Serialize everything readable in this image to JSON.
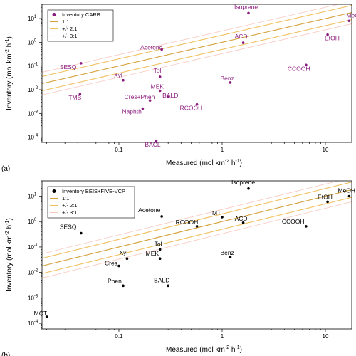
{
  "colors": {
    "carb_points": "#8b1c7e",
    "fivevcp_points": "#000000",
    "line_1to1": "#d4a13a",
    "line_2to1": "#f0c060",
    "line_3to1": "#f8c8c0"
  },
  "chart_data": [
    {
      "type": "scatter",
      "panel_label": "(a)",
      "xlabel": "Measured (mol km",
      "ylabel": "Inventory (mol km",
      "unit_sup1": "-2",
      "unit_mid": " h",
      "unit_sup2": "-1",
      "xscale": "log",
      "yscale": "log",
      "xlim": [
        0.018,
        18
      ],
      "ylim": [
        6e-05,
        40
      ],
      "xticks": [
        {
          "v": 0.1,
          "label": "0.1"
        },
        {
          "v": 1,
          "label": "1"
        },
        {
          "v": 10,
          "label": "10"
        }
      ],
      "yticks": [
        {
          "v": 10,
          "label": "10",
          "exp": "1"
        },
        {
          "v": 1,
          "label": "10",
          "exp": "0"
        },
        {
          "v": 0.1,
          "label": "10",
          "exp": "-1"
        },
        {
          "v": 0.01,
          "label": "10",
          "exp": "-2"
        },
        {
          "v": 0.001,
          "label": "10",
          "exp": "-3"
        },
        {
          "v": 0.0001,
          "label": "10",
          "exp": "-4"
        }
      ],
      "legend": {
        "position": "top-left",
        "entries": [
          "Inventory CARB",
          "1:1",
          "+/- 2:1",
          "+/- 3:1"
        ]
      },
      "series": [
        {
          "name": "Inventory CARB",
          "points": [
            {
              "label": "Isoprene",
              "x": 1.8,
              "y": 17
            },
            {
              "label": "MeOH",
              "x": 17,
              "y": 8
            },
            {
              "label": "EtOH",
              "x": 10.5,
              "y": 2.1
            },
            {
              "label": "ACD",
              "x": 1.6,
              "y": 0.95
            },
            {
              "label": "Acetone",
              "x": 0.26,
              "y": 0.5
            },
            {
              "label": "SESQ",
              "x": 0.043,
              "y": 0.13
            },
            {
              "label": "CCOOH",
              "x": 6.5,
              "y": 0.11
            },
            {
              "label": "Tol",
              "x": 0.25,
              "y": 0.035
            },
            {
              "label": "Xyl",
              "x": 0.11,
              "y": 0.025
            },
            {
              "label": "Benz",
              "x": 1.2,
              "y": 0.02
            },
            {
              "label": "MEK",
              "x": 0.25,
              "y": 0.009
            },
            {
              "label": "TMB",
              "x": 0.042,
              "y": 0.0065
            },
            {
              "label": "BALD",
              "x": 0.3,
              "y": 0.005
            },
            {
              "label": "Cres+Phen",
              "x": 0.2,
              "y": 0.0035
            },
            {
              "label": "RCOOH",
              "x": 0.57,
              "y": 0.0024
            },
            {
              "label": "Naphth",
              "x": 0.17,
              "y": 0.0016
            },
            {
              "label": "BACL",
              "x": 0.23,
              "y": 7e-05
            }
          ]
        }
      ]
    },
    {
      "type": "scatter",
      "panel_label": "(b)",
      "xlabel": "Measured (mol km",
      "ylabel": "Inventory (mol km",
      "unit_sup1": "-2",
      "unit_mid": " h",
      "unit_sup2": "-1",
      "xscale": "log",
      "yscale": "log",
      "xlim": [
        0.018,
        18
      ],
      "ylim": [
        6e-05,
        40
      ],
      "xticks": [
        {
          "v": 0.1,
          "label": "0.1"
        },
        {
          "v": 1,
          "label": "1"
        },
        {
          "v": 10,
          "label": "10"
        }
      ],
      "yticks": [
        {
          "v": 10,
          "label": "10",
          "exp": "1"
        },
        {
          "v": 1,
          "label": "10",
          "exp": "0"
        },
        {
          "v": 0.1,
          "label": "10",
          "exp": "-1"
        },
        {
          "v": 0.01,
          "label": "10",
          "exp": "-2"
        },
        {
          "v": 0.001,
          "label": "10",
          "exp": "-3"
        },
        {
          "v": 0.0001,
          "label": "10",
          "exp": "-4"
        }
      ],
      "legend": {
        "position": "top-left",
        "entries": [
          "Inventory BEIS+FIVE-VCP",
          "1:1",
          "+/- 2:1",
          "+/- 3:1"
        ]
      },
      "series": [
        {
          "name": "Inventory BEIS+FIVE-VCP",
          "points": [
            {
              "label": "Isoprene",
              "x": 1.8,
              "y": 20
            },
            {
              "label": "MeOH",
              "x": 17,
              "y": 10
            },
            {
              "label": "EtOH",
              "x": 10.5,
              "y": 6
            },
            {
              "label": "MT",
              "x": 1.0,
              "y": 1.5
            },
            {
              "label": "Acetone",
              "x": 0.26,
              "y": 1.6
            },
            {
              "label": "ACD",
              "x": 1.6,
              "y": 0.9
            },
            {
              "label": "RCOOH",
              "x": 0.57,
              "y": 0.65
            },
            {
              "label": "CCOOH",
              "x": 6.5,
              "y": 0.65
            },
            {
              "label": "SESQ",
              "x": 0.043,
              "y": 0.35
            },
            {
              "label": "Tol",
              "x": 0.25,
              "y": 0.08
            },
            {
              "label": "Xyl",
              "x": 0.12,
              "y": 0.035
            },
            {
              "label": "MEK",
              "x": 0.25,
              "y": 0.035
            },
            {
              "label": "Benz",
              "x": 1.2,
              "y": 0.04
            },
            {
              "label": "Cres",
              "x": 0.1,
              "y": 0.018
            },
            {
              "label": "Phen",
              "x": 0.11,
              "y": 0.003
            },
            {
              "label": "BALD",
              "x": 0.3,
              "y": 0.003
            },
            {
              "label": "MCT",
              "x": 0.02,
              "y": 0.00018
            }
          ]
        }
      ]
    }
  ]
}
